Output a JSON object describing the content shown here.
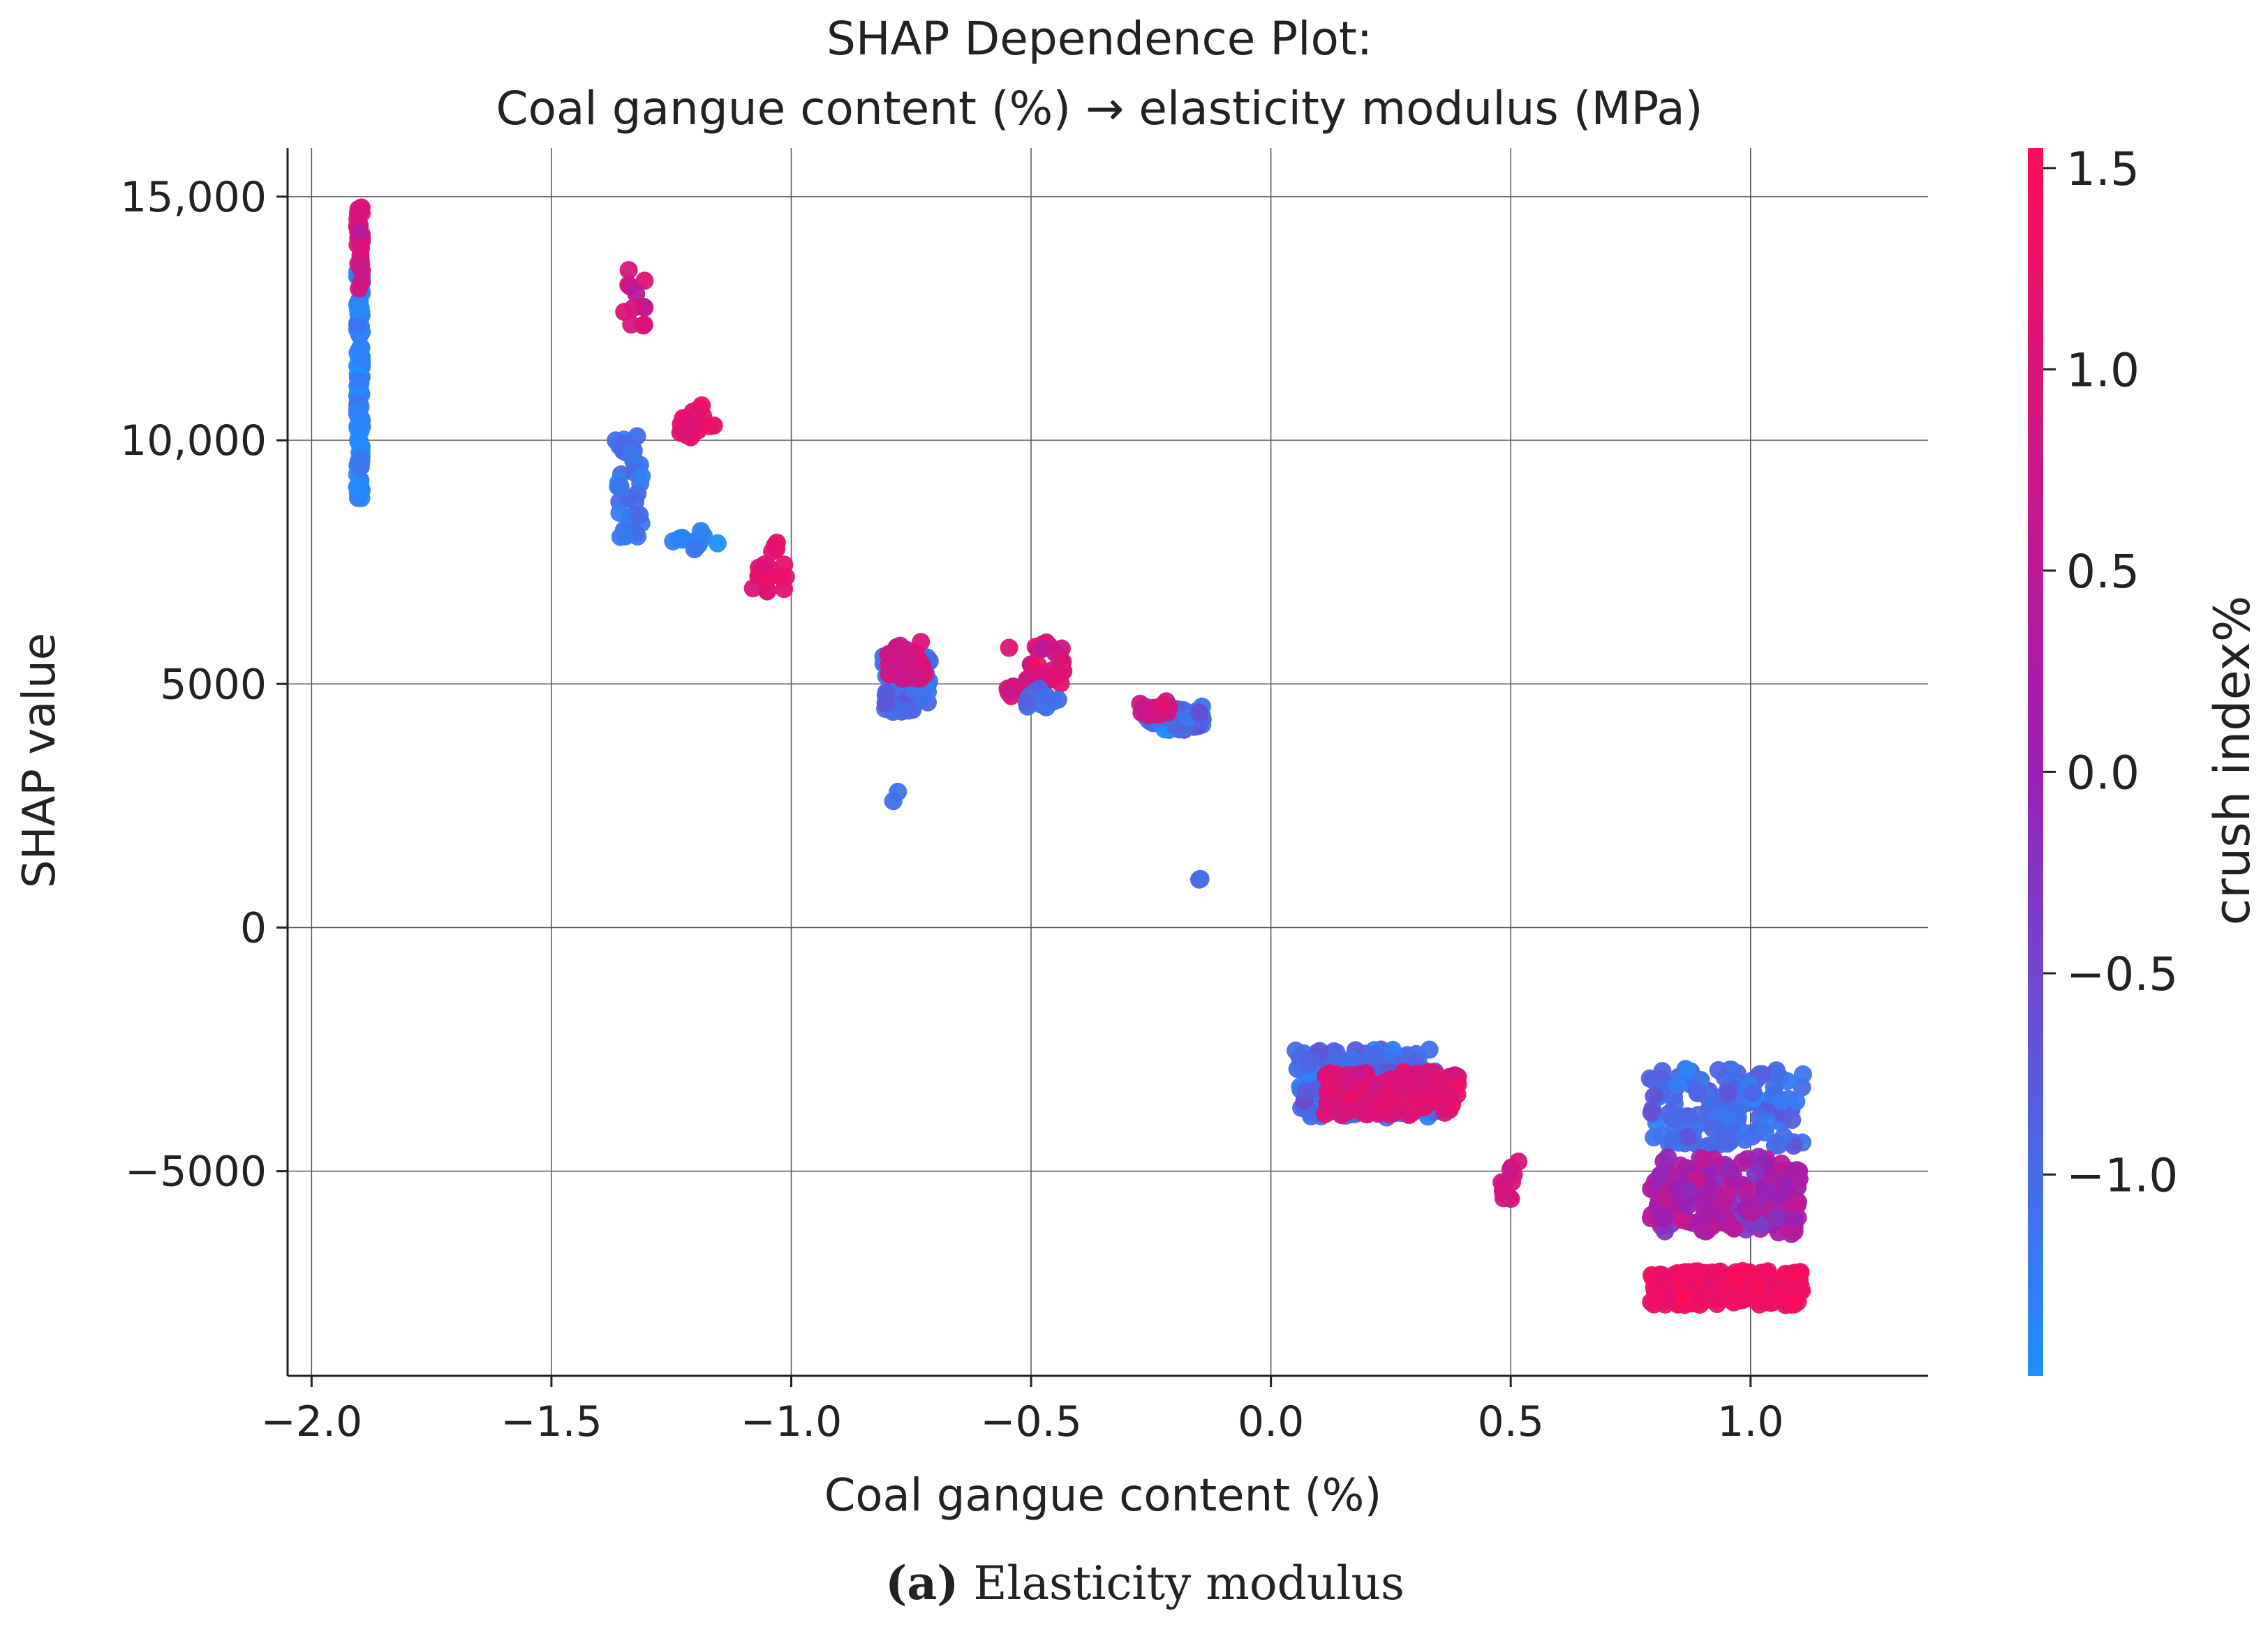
{
  "chart_data": {
    "type": "scatter",
    "title": "SHAP Dependence Plot:",
    "subtitle": "Coal gangue content (%) → elasticity modulus (MPa)",
    "xlabel": "Coal gangue content (%)",
    "ylabel": "SHAP value",
    "xlim": [
      -2.05,
      1.37
    ],
    "ylim": [
      -9200,
      16000
    ],
    "x_ticks": [
      -2.0,
      -1.5,
      -1.0,
      -0.5,
      0.0,
      0.5,
      1.0
    ],
    "x_tick_labels": [
      "−2.0",
      "−1.5",
      "−1.0",
      "−0.5",
      "0.0",
      "0.5",
      "1.0"
    ],
    "y_ticks": [
      15000,
      10000,
      5000,
      0,
      -5000
    ],
    "y_tick_labels": [
      "15,000",
      "10,000",
      "5000",
      "0",
      "−5000"
    ],
    "grid": true,
    "colorbar": {
      "label": "crush index%",
      "min": -1.5,
      "max": 1.55,
      "ticks": [
        1.5,
        1.0,
        0.5,
        0.0,
        -0.5,
        -1.0
      ],
      "tick_labels": [
        "1.5",
        "1.0",
        "0.5",
        "0.0",
        "−0.5",
        "−1.0"
      ],
      "colors": {
        "low": "#1e90ff",
        "mid": "#9c1fb4",
        "high": "#ff0d55"
      }
    },
    "clusters": [
      {
        "x": -1.9,
        "xspread": 0.005,
        "y": 11200,
        "yspread": 2400,
        "n": 130,
        "c": -1.3,
        "cspread": 0.2
      },
      {
        "x": -1.9,
        "xspread": 0.005,
        "y": 14000,
        "yspread": 900,
        "n": 30,
        "c": 0.9,
        "cspread": 0.3
      },
      {
        "x": -1.34,
        "xspread": 0.03,
        "y": 9100,
        "yspread": 1100,
        "n": 40,
        "c": -1.1,
        "cspread": 0.2
      },
      {
        "x": -1.33,
        "xspread": 0.03,
        "y": 12900,
        "yspread": 600,
        "n": 12,
        "c": 0.9,
        "cspread": 0.3
      },
      {
        "x": -1.2,
        "xspread": 0.04,
        "y": 10400,
        "yspread": 350,
        "n": 18,
        "c": 1.1,
        "cspread": 0.2
      },
      {
        "x": -1.2,
        "xspread": 0.05,
        "y": 7950,
        "yspread": 200,
        "n": 12,
        "c": -1.3,
        "cspread": 0.2
      },
      {
        "x": -1.05,
        "xspread": 0.04,
        "y": 7400,
        "yspread": 500,
        "n": 20,
        "c": 1.1,
        "cspread": 0.2
      },
      {
        "x": -0.76,
        "xspread": 0.05,
        "y": 5000,
        "yspread": 600,
        "n": 70,
        "c": -1.0,
        "cspread": 0.3
      },
      {
        "x": -0.76,
        "xspread": 0.04,
        "y": 5500,
        "yspread": 400,
        "n": 35,
        "c": 0.8,
        "cspread": 0.4
      },
      {
        "x": -0.78,
        "xspread": 0.01,
        "y": 2700,
        "yspread": 300,
        "n": 2,
        "c": -1.1,
        "cspread": 0.1
      },
      {
        "x": -0.49,
        "xspread": 0.06,
        "y": 5300,
        "yspread": 550,
        "n": 40,
        "c": 1.0,
        "cspread": 0.3
      },
      {
        "x": -0.47,
        "xspread": 0.04,
        "y": 4700,
        "yspread": 200,
        "n": 15,
        "c": -1.0,
        "cspread": 0.2
      },
      {
        "x": -0.2,
        "xspread": 0.06,
        "y": 4300,
        "yspread": 250,
        "n": 60,
        "c": -1.0,
        "cspread": 0.3
      },
      {
        "x": -0.24,
        "xspread": 0.04,
        "y": 4500,
        "yspread": 150,
        "n": 15,
        "c": 0.8,
        "cspread": 0.3
      },
      {
        "x": -0.15,
        "xspread": 0.005,
        "y": 1000,
        "yspread": 30,
        "n": 2,
        "c": -1.1,
        "cspread": 0.1
      },
      {
        "x": 0.2,
        "xspread": 0.15,
        "y": -3200,
        "yspread": 700,
        "n": 180,
        "c": -1.0,
        "cspread": 0.3
      },
      {
        "x": 0.25,
        "xspread": 0.14,
        "y": -3400,
        "yspread": 450,
        "n": 140,
        "c": 1.0,
        "cspread": 0.3
      },
      {
        "x": 0.5,
        "xspread": 0.02,
        "y": -5200,
        "yspread": 400,
        "n": 12,
        "c": 0.9,
        "cspread": 0.3
      },
      {
        "x": 0.95,
        "xspread": 0.16,
        "y": -3700,
        "yspread": 800,
        "n": 160,
        "c": -1.0,
        "cspread": 0.3
      },
      {
        "x": 0.95,
        "xspread": 0.16,
        "y": -5500,
        "yspread": 800,
        "n": 200,
        "c": 0.2,
        "cspread": 0.5
      },
      {
        "x": 0.95,
        "xspread": 0.16,
        "y": -7400,
        "yspread": 350,
        "n": 260,
        "c": 1.3,
        "cspread": 0.2
      }
    ]
  },
  "caption": {
    "label": "(a)",
    "text": " Elasticity modulus"
  }
}
